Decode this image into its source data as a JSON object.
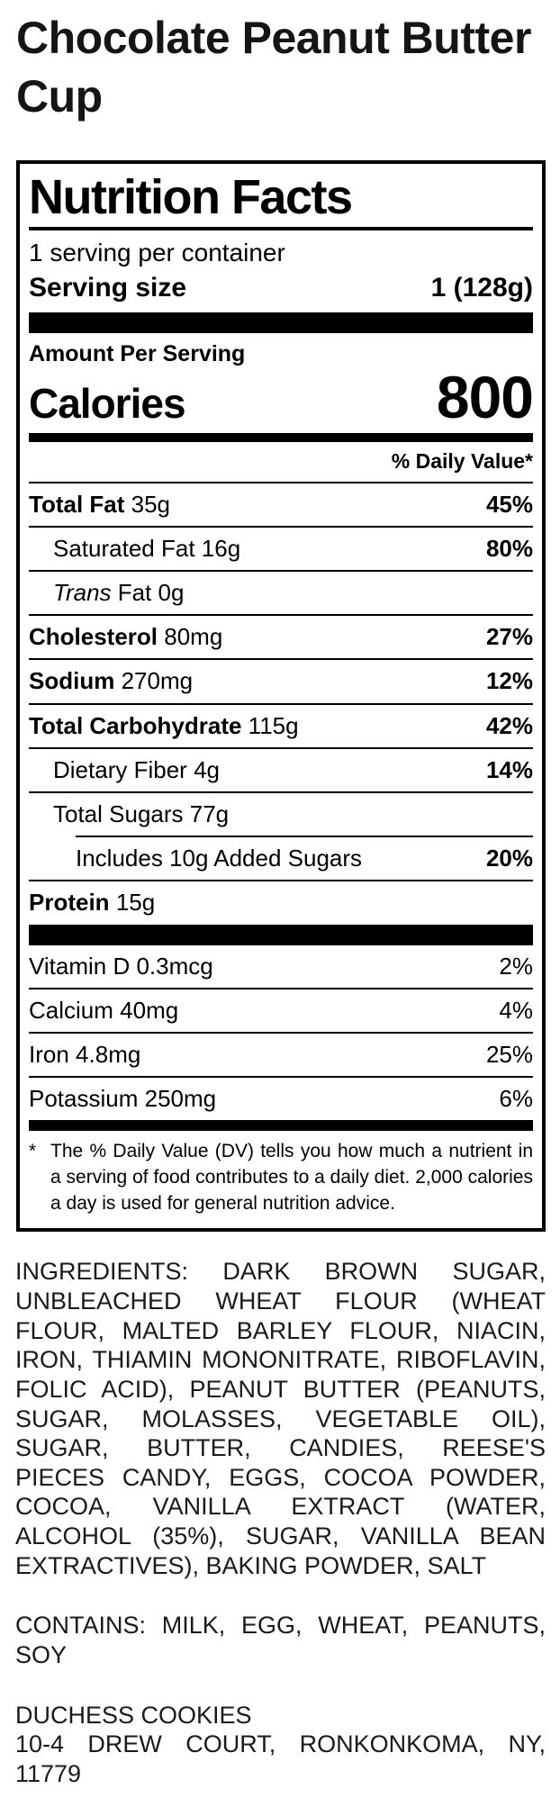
{
  "page": {
    "title": "Chocolate Peanut Butter Cup"
  },
  "panel": {
    "heading": "Nutrition Facts",
    "servings_per_container": "1 serving per container",
    "serving_size": {
      "label": "Serving size",
      "value": "1 (128g)"
    },
    "amount_per_serving": "Amount Per Serving",
    "calories": {
      "label": "Calories",
      "value": "800"
    },
    "daily_value_header": "% Daily Value*",
    "nutrients": [
      {
        "name": "Total Fat",
        "amount": "35g",
        "dv": "45%"
      },
      {
        "name": "Saturated Fat",
        "amount": "16g",
        "dv": "80%"
      },
      {
        "name_italic": "Trans",
        "name_rest": "Fat 0g"
      },
      {
        "name": "Cholesterol",
        "amount": "80mg",
        "dv": "27%"
      },
      {
        "name": "Sodium",
        "amount": "270mg",
        "dv": "12%"
      },
      {
        "name": "Total Carbohydrate",
        "amount": "115g",
        "dv": "42%"
      },
      {
        "name": "Dietary Fiber",
        "amount": "4g",
        "dv": "14%"
      },
      {
        "name": "Total Sugars",
        "amount": "77g"
      },
      {
        "name": "Includes 10g Added Sugars",
        "dv": "20%"
      },
      {
        "name": "Protein",
        "amount": "15g"
      }
    ],
    "vitamins": [
      {
        "name": "Vitamin D",
        "amount": "0.3mcg",
        "dv": "2%"
      },
      {
        "name": "Calcium",
        "amount": "40mg",
        "dv": "4%"
      },
      {
        "name": "Iron",
        "amount": "4.8mg",
        "dv": "25%"
      },
      {
        "name": "Potassium",
        "amount": "250mg",
        "dv": "6%"
      }
    ],
    "footnote": {
      "marker": "*",
      "text": "The % Daily Value (DV) tells you how much a nutrient in a serving of food contributes to a daily diet. 2,000 calories a day is used for general nutrition advice."
    }
  },
  "ingredients": {
    "text": "INGREDIENTS: DARK BROWN SUGAR, UNBLEACHED WHEAT FLOUR (WHEAT FLOUR, MALTED BARLEY FLOUR, NIACIN, IRON, THIAMIN MONONITRATE, RIBOFLAVIN, FOLIC ACID), PEANUT BUTTER (PEANUTS, SUGAR, MOLASSES, VEGETABLE OIL), SUGAR, BUTTER, CANDIES, REESE'S PIECES CANDY, EGGS, COCOA POWDER, COCOA, VANILLA EXTRACT (WATER, ALCOHOL (35%), SUGAR, VANILLA BEAN EXTRACTIVES), BAKING POWDER, SALT"
  },
  "allergens": {
    "text": "CONTAINS: MILK, EGG, WHEAT, PEANUTS, SOY"
  },
  "manufacturer": {
    "name": "DUCHESS COOKIES",
    "address": "10-4 DREW COURT, RONKONKOMA, NY, 11779"
  }
}
